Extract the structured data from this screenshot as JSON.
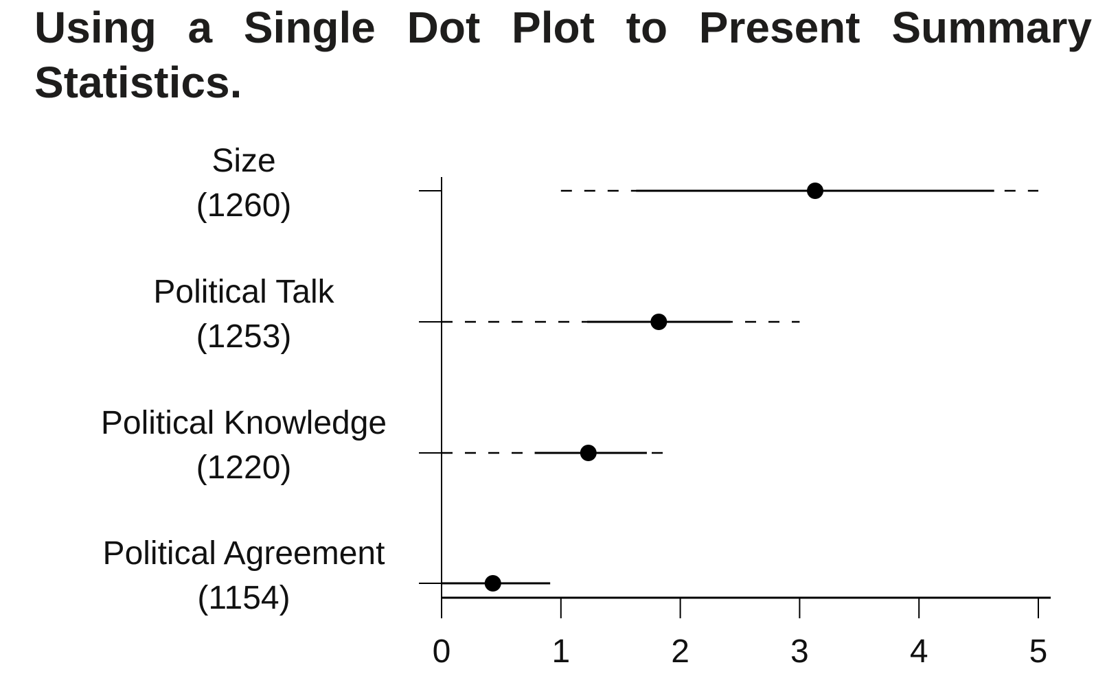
{
  "title": "Using a Single Dot Plot to Present Summary Statistics.",
  "chart_data": {
    "type": "dot",
    "xlim": [
      0,
      5
    ],
    "x_ticks": [
      "0",
      "1",
      "2",
      "3",
      "4",
      "5"
    ],
    "grid": false,
    "legend": "none",
    "rows": [
      {
        "label": "Size",
        "n": "(1260)",
        "mean": 3.13,
        "solid": [
          1.63,
          4.63
        ],
        "dashed": [
          1.0,
          5.0
        ]
      },
      {
        "label": "Political Talk",
        "n": "(1253)",
        "mean": 1.82,
        "solid": [
          1.22,
          2.42
        ],
        "dashed": [
          0.0,
          3.0
        ]
      },
      {
        "label": "Political Knowledge",
        "n": "(1220)",
        "mean": 1.23,
        "solid": [
          0.78,
          1.72
        ],
        "dashed": [
          0.0,
          1.95
        ]
      },
      {
        "label": "Political Agreement",
        "n": "(1154)",
        "mean": 0.43,
        "solid": [
          0.0,
          0.91
        ],
        "dashed": [
          0.0,
          0.91
        ]
      }
    ],
    "colors": {
      "ink": "#000000",
      "title": "#1e1d1c"
    }
  }
}
